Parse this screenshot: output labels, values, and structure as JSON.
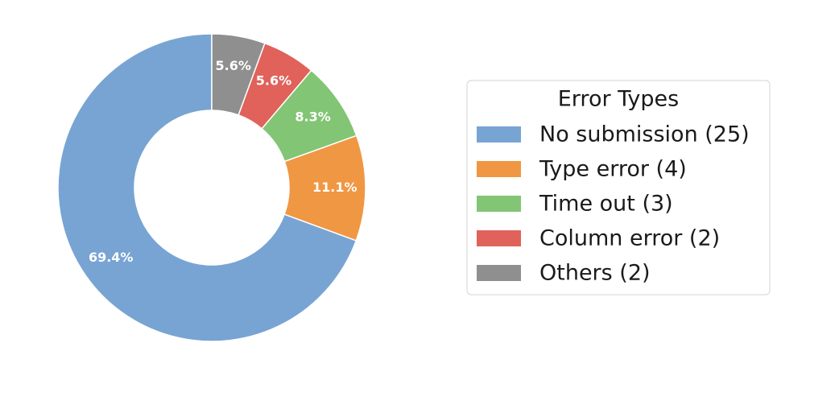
{
  "chart_data": {
    "type": "donut",
    "legend_title": "Error Types",
    "categories": [
      "No submission (25)",
      "Type error (4)",
      "Time out (3)",
      "Column error (2)",
      "Others (2)"
    ],
    "values": [
      69.4,
      11.1,
      8.3,
      5.6,
      5.6
    ],
    "value_labels": [
      "69.4%",
      "11.1%",
      "8.3%",
      "5.6%",
      "5.6%"
    ],
    "colors": [
      "#77a4d3",
      "#f09743",
      "#82c574",
      "#e0625a",
      "#8f8f8f"
    ]
  }
}
